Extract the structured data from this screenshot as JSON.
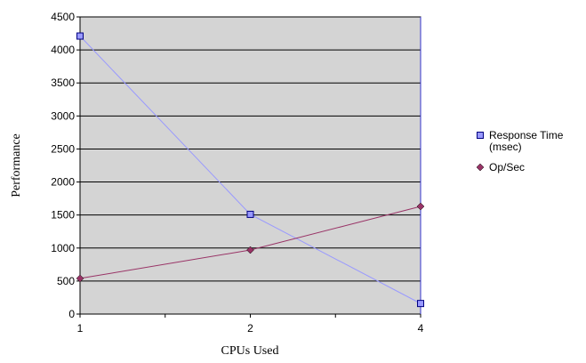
{
  "chart_data": {
    "type": "line",
    "title": "",
    "xlabel": "CPUs Used",
    "ylabel": "Performance",
    "x": [
      "1",
      "2",
      "4"
    ],
    "ylim": [
      0,
      4500
    ],
    "yticks": [
      0,
      500,
      1000,
      1500,
      2000,
      2500,
      3000,
      3500,
      4000,
      4500
    ],
    "grid": true,
    "legend_position": "right",
    "series": [
      {
        "name": "Response Time (msec)",
        "name_lines": [
          "Response Time",
          "(msec)"
        ],
        "values": [
          4210,
          1510,
          160
        ],
        "color": "#9999ff",
        "marker": "square"
      },
      {
        "name": "Op/Sec",
        "name_lines": [
          "Op/Sec"
        ],
        "values": [
          540,
          970,
          1630
        ],
        "color": "#993366",
        "marker": "diamond"
      }
    ],
    "plot_background": "#c0c0c0"
  }
}
